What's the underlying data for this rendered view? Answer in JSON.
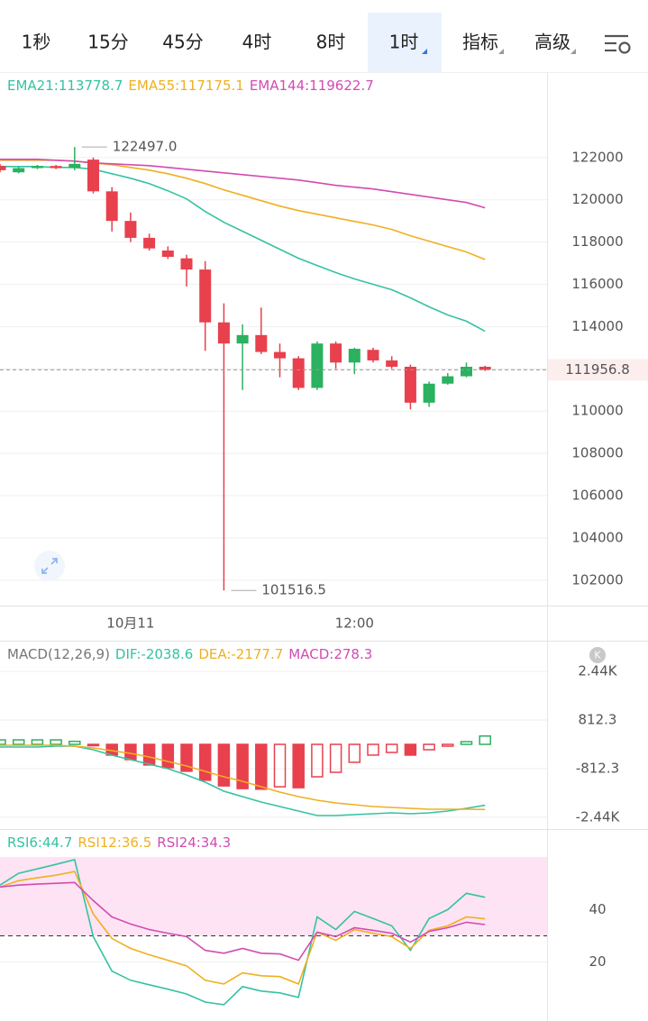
{
  "tabs": [
    "1秒",
    "15分",
    "45分",
    "4时",
    "8时",
    "1时",
    "指标",
    "高级"
  ],
  "selected_tab": 5,
  "chart_data": [
    {
      "type": "candlestick",
      "x": [
        null,
        null,
        null,
        null,
        null,
        null,
        null,
        "10月11",
        null,
        null,
        null,
        null,
        null,
        null,
        null,
        null,
        null,
        null,
        null,
        "12:00",
        null,
        null,
        null,
        null,
        null,
        null,
        null
      ],
      "candles": [
        {
          "open": 121600,
          "high": 121700,
          "low": 121300,
          "close": 121400
        },
        {
          "open": 121300,
          "high": 121550,
          "low": 121250,
          "close": 121500
        },
        {
          "open": 121500,
          "high": 121650,
          "low": 121450,
          "close": 121600
        },
        {
          "open": 121600,
          "high": 121650,
          "low": 121450,
          "close": 121500
        },
        {
          "open": 121500,
          "high": 122497,
          "low": 121400,
          "close": 121700
        },
        {
          "open": 121900,
          "high": 122000,
          "low": 120300,
          "close": 120400
        },
        {
          "open": 120400,
          "high": 120600,
          "low": 118500,
          "close": 119000
        },
        {
          "open": 119000,
          "high": 119400,
          "low": 118000,
          "close": 118200
        },
        {
          "open": 118200,
          "high": 118400,
          "low": 117600,
          "close": 117700
        },
        {
          "open": 117600,
          "high": 117800,
          "low": 117200,
          "close": 117300
        },
        {
          "open": 117230,
          "high": 117400,
          "low": 115900,
          "close": 116700
        },
        {
          "open": 116700,
          "high": 117100,
          "low": 112850,
          "close": 114200
        },
        {
          "open": 114200,
          "high": 115100,
          "low": 101516.5,
          "close": 113200
        },
        {
          "open": 113200,
          "high": 114100,
          "low": 111000,
          "close": 113600
        },
        {
          "open": 113600,
          "high": 114900,
          "low": 112700,
          "close": 112800
        },
        {
          "open": 112800,
          "high": 113200,
          "low": 111600,
          "close": 112500
        },
        {
          "open": 112500,
          "high": 112600,
          "low": 111000,
          "close": 111100
        },
        {
          "open": 111100,
          "high": 113300,
          "low": 111000,
          "close": 113200
        },
        {
          "open": 113200,
          "high": 113300,
          "low": 112000,
          "close": 112300
        },
        {
          "open": 112300,
          "high": 113000,
          "low": 111750,
          "close": 112950
        },
        {
          "open": 112900,
          "high": 113000,
          "low": 112300,
          "close": 112400
        },
        {
          "open": 112400,
          "high": 112600,
          "low": 112000,
          "close": 112100
        },
        {
          "open": 112100,
          "high": 112200,
          "low": 110085,
          "close": 110400
        },
        {
          "open": 110400,
          "high": 111400,
          "low": 110200,
          "close": 111300
        },
        {
          "open": 111300,
          "high": 111800,
          "low": 111250,
          "close": 111650
        },
        {
          "open": 111650,
          "high": 112300,
          "low": 111600,
          "close": 112100
        },
        {
          "open": 112100,
          "high": 112150,
          "low": 111900,
          "close": 111956.8
        }
      ],
      "up_color": "#2bb15f",
      "down_color": "#e8404d",
      "series": [
        {
          "label": "EMA21:113778.7",
          "color": "#35c2a2",
          "values": [
            121575,
            121575,
            121575,
            121532,
            121532,
            121447,
            121234,
            121021,
            120766,
            120426,
            120043,
            119447,
            118936,
            118511,
            118085,
            117660,
            117234,
            116894,
            116554,
            116256,
            116000,
            115745,
            115362,
            114936,
            114553,
            114255,
            113778.7
          ]
        },
        {
          "label": "EMA55:117175.1",
          "color": "#efb020",
          "values": [
            121872,
            121872,
            121872,
            121872,
            121830,
            121745,
            121660,
            121532,
            121404,
            121234,
            121021,
            120766,
            120468,
            120213,
            119958,
            119702,
            119490,
            119319,
            119149,
            118979,
            118809,
            118596,
            118298,
            118043,
            117787,
            117532,
            117175.1
          ]
        },
        {
          "label": "EMA144:119622.7",
          "color": "#d24bb2",
          "values": [
            121915,
            121915,
            121915,
            121872,
            121830,
            121745,
            121702,
            121660,
            121617,
            121532,
            121447,
            121362,
            121277,
            121192,
            121106,
            121021,
            120936,
            120809,
            120681,
            120596,
            120511,
            120383,
            120256,
            120128,
            120000,
            119872,
            119622.7
          ]
        }
      ],
      "annotations": [
        {
          "value": 122497.0,
          "label": "122497.0"
        },
        101516.5
      ],
      "last_price": 111956.8,
      "ylim": [
        100800,
        126000
      ],
      "yticks": [
        102000,
        104000,
        106000,
        108000,
        110000,
        112000,
        114000,
        116000,
        118000,
        120000,
        122000
      ],
      "grid": true
    },
    {
      "type": "macd",
      "prefix": "MACD(12,26,9)",
      "badge": "K",
      "series": [
        {
          "label": "DIF:-2038.6",
          "color": "#35c2a2",
          "values": [
            -90,
            -90,
            -90,
            -60,
            -60,
            -181,
            -362,
            -512,
            -663,
            -814,
            -1025,
            -1266,
            -1567,
            -1748,
            -1929,
            -2080,
            -2230,
            -2381,
            -2381,
            -2351,
            -2321,
            -2291,
            -2321,
            -2291,
            -2230,
            -2140,
            -2038.6
          ]
        },
        {
          "label": "DEA:-2177.7",
          "color": "#efb020",
          "values": [
            -30,
            -30,
            -30,
            -30,
            -60,
            -121,
            -211,
            -301,
            -422,
            -573,
            -723,
            -904,
            -1085,
            -1236,
            -1417,
            -1597,
            -1748,
            -1869,
            -1959,
            -2019,
            -2080,
            -2110,
            -2140,
            -2170,
            -2170,
            -2170,
            -2177.7
          ]
        },
        {
          "label": "MACD:278.3",
          "color": "#d24bb2",
          "values": [
            150,
            150,
            150,
            150,
            100,
            -20,
            -360,
            -510,
            -690,
            -780,
            -900,
            -1200,
            -1390,
            -1480,
            -1500,
            -1420,
            -1450,
            -1085,
            -935,
            -600,
            -360,
            -270,
            -360,
            -180,
            -60,
            90,
            278.3
          ]
        }
      ],
      "up_color": "#2bb15f",
      "down_color": "#e8404d",
      "ylim": [
        -2833,
        3436
      ],
      "yticks": [
        {
          "value": -2436.9,
          "label": "-2.44K"
        },
        -812.3,
        812.3,
        {
          "value": 2436.9,
          "label": "2.44K"
        }
      ],
      "grid": true
    },
    {
      "type": "rsi",
      "series": [
        {
          "label": "RSI6:44.7",
          "color": "#35c2a2",
          "values": [
            49.3,
            53.8,
            55.5,
            57.2,
            59.0,
            29.7,
            16.6,
            13.1,
            11.4,
            9.7,
            7.9,
            4.8,
            3.8,
            10.7,
            9.0,
            8.3,
            6.6,
            37.2,
            32.4,
            39.3,
            36.6,
            33.8,
            24.5,
            36.6,
            40.0,
            46.2,
            44.7
          ]
        },
        {
          "label": "RSI12:36.5",
          "color": "#efb020",
          "values": [
            48.6,
            51.0,
            52.1,
            53.1,
            54.5,
            38.3,
            29.0,
            25.2,
            22.8,
            20.7,
            18.6,
            13.1,
            11.7,
            15.9,
            14.8,
            14.5,
            11.7,
            31.4,
            28.3,
            32.4,
            31.0,
            29.7,
            25.2,
            32.1,
            33.8,
            37.2,
            36.5
          ]
        },
        {
          "label": "RSI24:34.3",
          "color": "#d24bb2",
          "values": [
            48.6,
            49.3,
            49.7,
            50.0,
            50.3,
            43.4,
            37.2,
            34.5,
            32.4,
            31.0,
            29.7,
            24.5,
            23.4,
            25.2,
            23.4,
            23.1,
            20.7,
            31.4,
            29.7,
            33.1,
            32.1,
            31.0,
            27.6,
            31.7,
            33.1,
            35.2,
            34.3
          ]
        }
      ],
      "band": [
        30,
        60
      ],
      "band_color": "#fde3f4",
      "level": 30,
      "ylim": [
        -2.4,
        70.3
      ],
      "yticks": [
        20,
        40
      ],
      "grid": true
    }
  ]
}
